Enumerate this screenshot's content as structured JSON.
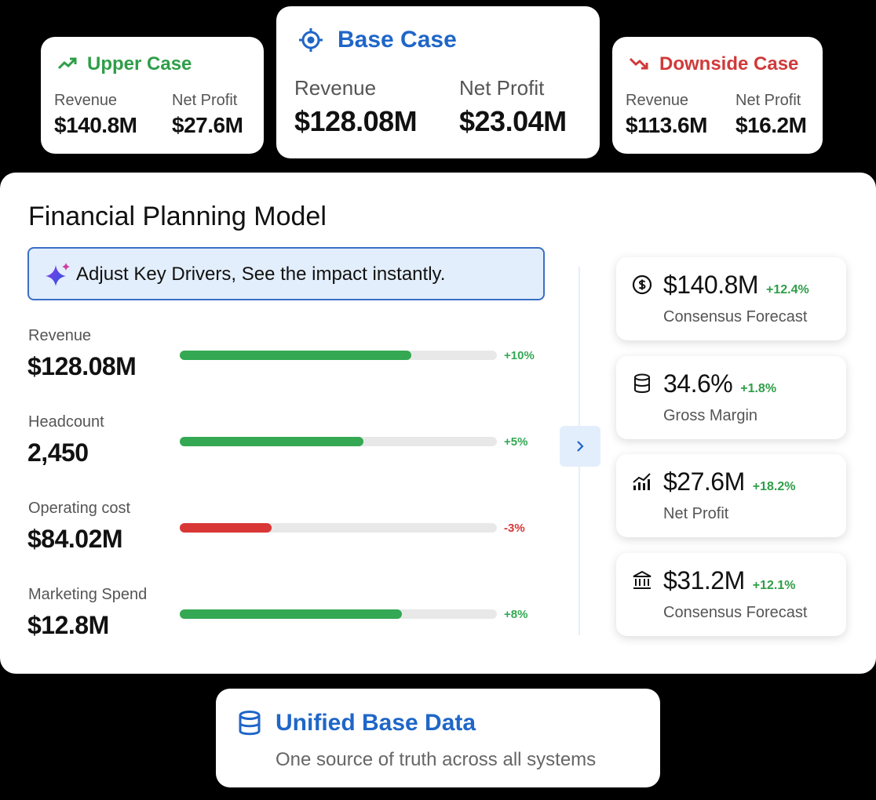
{
  "scenarios": [
    {
      "title": "Upper Case",
      "metrics": [
        {
          "label": "Revenue",
          "value": "$140.8M"
        },
        {
          "label": "Net Profit",
          "value": "$27.6M"
        }
      ]
    },
    {
      "title": "Base Case",
      "metrics": [
        {
          "label": "Revenue",
          "value": "$128.08M"
        },
        {
          "label": "Net Profit",
          "value": "$23.04M"
        }
      ]
    },
    {
      "title": "Downside Case",
      "metrics": [
        {
          "label": "Revenue",
          "value": "$113.6M"
        },
        {
          "label": "Net Profit",
          "value": "$16.2M"
        }
      ]
    }
  ],
  "model": {
    "title": "Financial Planning Model",
    "banner": "Adjust Key Drivers, See the impact instantly.",
    "drivers": [
      {
        "label": "Revenue",
        "value": "$128.08M",
        "change": "+10%",
        "fill": 73,
        "color": "#34a853"
      },
      {
        "label": "Headcount",
        "value": "2,450",
        "change": "+5%",
        "fill": 58,
        "color": "#34a853"
      },
      {
        "label": "Operating cost",
        "value": "$84.02M",
        "change": "-3%",
        "fill": 29,
        "color": "#d93636"
      },
      {
        "label": "Marketing Spend",
        "value": "$12.8M",
        "change": "+8%",
        "fill": 70,
        "color": "#34a853"
      }
    ]
  },
  "kpis": [
    {
      "value": "$140.8M",
      "change": "+12.4%",
      "label": "Consensus Forecast"
    },
    {
      "value": "34.6%",
      "change": "+1.8%",
      "label": "Gross Margin"
    },
    {
      "value": "$27.6M",
      "change": "+18.2%",
      "label": "Net Profit"
    },
    {
      "value": "$31.2M",
      "change": "+12.1%",
      "label": "Consensus Forecast"
    }
  ],
  "footer": {
    "title": "Unified Base Data",
    "subtitle": "One source of truth across all systems"
  }
}
